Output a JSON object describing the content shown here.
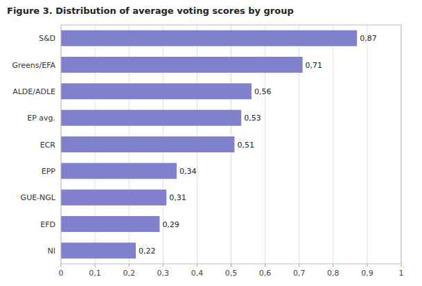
{
  "chart_data": {
    "type": "bar",
    "orientation": "horizontal",
    "title": "Figure 3.  Distribution of average voting scores by group",
    "categories": [
      "S&D",
      "Greens/EFA",
      "ALDE/ADLE",
      "EP avg.",
      "ECR",
      "EPP",
      "GUE-NGL",
      "EFD",
      "NI"
    ],
    "values": [
      0.87,
      0.71,
      0.56,
      0.53,
      0.51,
      0.34,
      0.31,
      0.29,
      0.22
    ],
    "value_labels": [
      "0,87",
      "0,71",
      "0,56",
      "0,53",
      "0,51",
      "0,34",
      "0,31",
      "0,29",
      "0,22"
    ],
    "data_labels": true,
    "color": "#8080CC",
    "xlim": [
      0,
      1
    ],
    "xticks": [
      0,
      {
        "value": 0.1,
        "label": "0,1"
      },
      {
        "value": 0.2,
        "label": "0,2"
      },
      {
        "value": 0.3,
        "label": "0,3"
      },
      {
        "value": 0.4,
        "label": "0,4"
      },
      {
        "value": 0.5,
        "label": "0,5"
      },
      {
        "value": 0.6,
        "label": "0,6"
      },
      {
        "value": 0.7,
        "label": "0,7"
      },
      {
        "value": 0.8,
        "label": "0,8"
      },
      {
        "value": 0.9,
        "label": "0,9"
      },
      1
    ],
    "grid": true
  }
}
